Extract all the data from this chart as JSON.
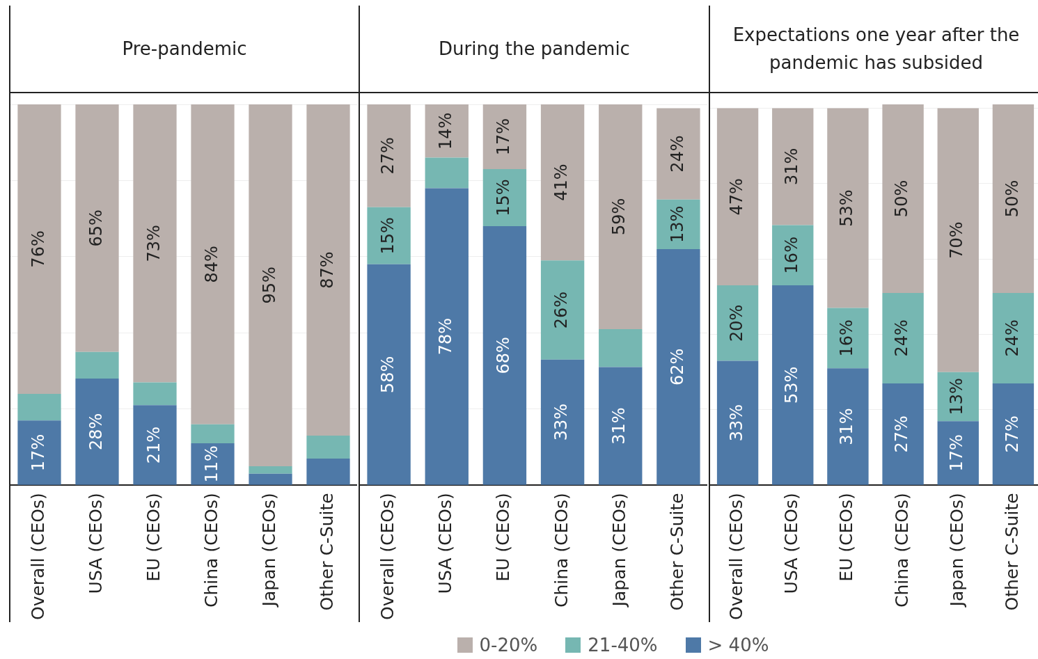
{
  "chart_data": [
    {
      "type": "bar",
      "title": "Pre-pandemic",
      "stacked": true,
      "categories": [
        "Overall (CEOs)",
        "USA (CEOs)",
        "EU (CEOs)",
        "China (CEOs)",
        "Japan (CEOs)",
        "Other C-Suite"
      ],
      "series": [
        {
          "color": "#4e79a7",
          "values": [
            17,
            28,
            21,
            11,
            3,
            7
          ],
          "value_labels": [
            "17%",
            "28%",
            "21%",
            "11%",
            null,
            null
          ]
        },
        {
          "color": "#76b7b2",
          "values": [
            7,
            7,
            6,
            5,
            2,
            6
          ],
          "value_labels": [
            null,
            null,
            null,
            null,
            null,
            null
          ]
        },
        {
          "color": "#bab0ac",
          "values": [
            76,
            65,
            73,
            84,
            95,
            87
          ],
          "value_labels": [
            "76%",
            "65%",
            "73%",
            "84%",
            "95%",
            "87%"
          ]
        }
      ],
      "ylim": [
        0,
        100
      ],
      "yticks": [
        {
          "value": 0,
          "label": null
        },
        {
          "value": 20,
          "label": null
        },
        {
          "value": 40,
          "label": null
        },
        {
          "value": 60,
          "label": null
        },
        {
          "value": 80,
          "label": null
        },
        {
          "value": 100,
          "label": null
        }
      ],
      "grid": "y",
      "tick_labels": "x"
    },
    {
      "type": "bar",
      "title": "During the pandemic",
      "stacked": true,
      "categories": [
        "Overall (CEOs)",
        "USA (CEOs)",
        "EU (CEOs)",
        "China (CEOs)",
        "Japan (CEOs)",
        "Other C-Suite"
      ],
      "series": [
        {
          "name": "> 40%",
          "color": "#4e79a7",
          "values": [
            58,
            78,
            68,
            33,
            31,
            62
          ],
          "value_labels": [
            "58%",
            "78%",
            "68%",
            "33%",
            "31%",
            "62%"
          ]
        },
        {
          "name": "21-40%",
          "color": "#76b7b2",
          "values": [
            15,
            8,
            15,
            26,
            10,
            13
          ],
          "value_labels": [
            "15%",
            null,
            "15%",
            "26%",
            null,
            "13%"
          ]
        },
        {
          "name": "0-20%",
          "color": "#bab0ac",
          "values": [
            27,
            14,
            17,
            41,
            59,
            24
          ],
          "value_labels": [
            "27%",
            "14%",
            "17%",
            "41%",
            "59%",
            "24%"
          ]
        }
      ],
      "ylim": [
        0,
        100
      ],
      "yticks": [
        {
          "value": 0,
          "label": null
        },
        {
          "value": 20,
          "label": null
        },
        {
          "value": 40,
          "label": null
        },
        {
          "value": 60,
          "label": null
        },
        {
          "value": 80,
          "label": null
        },
        {
          "value": 100,
          "label": null
        }
      ],
      "grid": "y",
      "tick_labels": "x",
      "legend": "bottom"
    },
    {
      "type": "bar",
      "title": "Expectations one year after the pandemic has subsided",
      "stacked": true,
      "categories": [
        "Overall (CEOs)",
        "USA (CEOs)",
        "EU (CEOs)",
        "China (CEOs)",
        "Japan (CEOs)",
        "Other C-Suite"
      ],
      "series": [
        {
          "color": "#4e79a7",
          "values": [
            33,
            53,
            31,
            27,
            17,
            27
          ],
          "value_labels": [
            "33%",
            "53%",
            "31%",
            "27%",
            "17%",
            "27%"
          ]
        },
        {
          "color": "#76b7b2",
          "values": [
            20,
            16,
            16,
            24,
            13,
            24
          ],
          "value_labels": [
            "20%",
            "16%",
            "16%",
            "24%",
            "13%",
            "24%"
          ]
        },
        {
          "color": "#bab0ac",
          "values": [
            47,
            31,
            53,
            50,
            70,
            50
          ],
          "value_labels": [
            "47%",
            "31%",
            "53%",
            "50%",
            "70%",
            "50%"
          ]
        }
      ],
      "ylim": [
        0,
        101
      ],
      "yticks": [
        {
          "value": 0,
          "label": null
        },
        {
          "value": 20,
          "label": null
        },
        {
          "value": 40,
          "label": null
        },
        {
          "value": 60,
          "label": null
        },
        {
          "value": 80,
          "label": null
        },
        {
          "value": 100,
          "label": null
        }
      ],
      "grid": "y",
      "tick_labels": "x"
    }
  ]
}
